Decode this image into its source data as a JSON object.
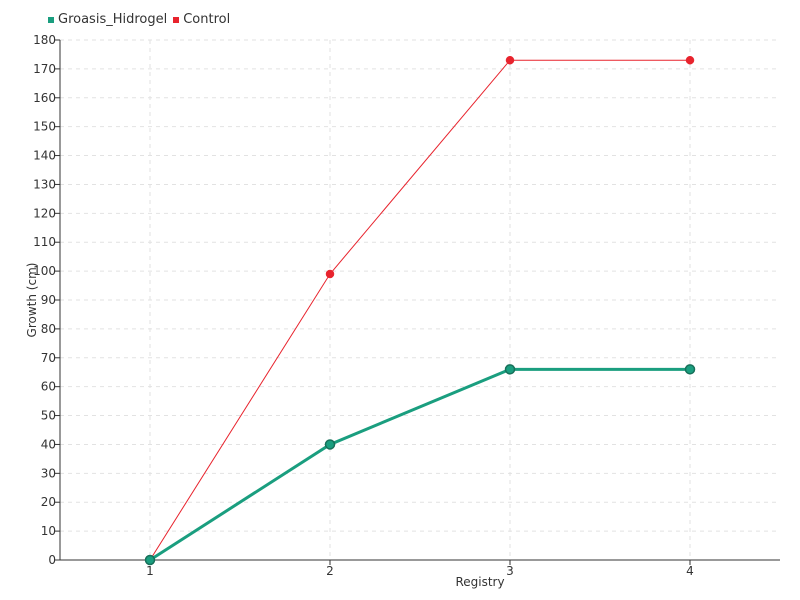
{
  "chart_data": {
    "type": "line",
    "title": "",
    "xlabel": "Registry",
    "ylabel": "Growth (cm)",
    "categories": [
      "1",
      "2",
      "3",
      "4"
    ],
    "ylim": [
      0,
      180
    ],
    "ytick_step": 10,
    "grid": true,
    "legend_position": "top-left",
    "series": [
      {
        "name": "Groasis_Hidrogel",
        "values": [
          0,
          40,
          66,
          66
        ],
        "color": "#1a9e7f",
        "marker_stroke": "#17705a"
      },
      {
        "name": "Control",
        "values": [
          0,
          99,
          173,
          173
        ],
        "color": "#e8232d",
        "marker_stroke": "#e8232d"
      }
    ]
  }
}
